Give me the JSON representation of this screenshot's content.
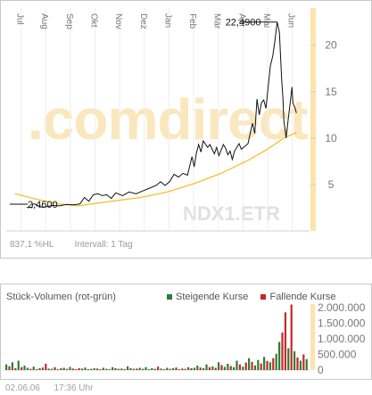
{
  "chart_data": [
    {
      "type": "line",
      "months": [
        "Jul",
        "Aug",
        "Sep",
        "Okt",
        "Nov",
        "Dez",
        "Jan",
        "Feb",
        "Mär",
        "Apr",
        "Mai",
        "Jun"
      ],
      "ylim": [
        0,
        24
      ],
      "yticks": [
        "5",
        "10",
        "15",
        "20"
      ],
      "high_label": "22,4900",
      "low_label": "2,4600",
      "watermark": ".comdirect",
      "ticker": "NDX1.ETR",
      "series": [
        {
          "values": [
            [
              2.7,
              2.55
            ],
            [
              3.0,
              2.5
            ],
            [
              3.4,
              2.55
            ],
            [
              3.8,
              2.5
            ],
            [
              4.0,
              2.9
            ],
            [
              4.5,
              2.9
            ],
            [
              5.0,
              2.75
            ],
            [
              5.5,
              2.6
            ],
            [
              6.2,
              2.55
            ],
            [
              7.0,
              2.6
            ],
            [
              8.5,
              2.75
            ],
            [
              10.0,
              2.7
            ],
            [
              11.5,
              2.85
            ],
            [
              13.0,
              2.8
            ],
            [
              14.5,
              2.9
            ],
            [
              15.5,
              3.6
            ],
            [
              16.5,
              3.2
            ],
            [
              17.5,
              3.9
            ],
            [
              18.5,
              4.0
            ],
            [
              19.5,
              3.8
            ],
            [
              20.5,
              3.9
            ],
            [
              21.5,
              3.5
            ],
            [
              22.5,
              4.1
            ],
            [
              24.0,
              3.8
            ],
            [
              25.5,
              4.2
            ],
            [
              27.0,
              4.0
            ],
            [
              28.5,
              4.3
            ],
            [
              30.0,
              4.6
            ],
            [
              31.5,
              4.9
            ],
            [
              32.5,
              5.3
            ],
            [
              33.5,
              4.9
            ],
            [
              34.5,
              5.3
            ],
            [
              35.5,
              6.1
            ],
            [
              36.5,
              5.8
            ],
            [
              37.5,
              6.2
            ],
            [
              38.5,
              6.0
            ],
            [
              39.5,
              8.0
            ],
            [
              40.0,
              6.9
            ],
            [
              40.5,
              8.4
            ],
            [
              41.0,
              9.3
            ],
            [
              41.5,
              8.5
            ],
            [
              42.0,
              9.7
            ],
            [
              43.0,
              9.0
            ],
            [
              43.5,
              9.3
            ],
            [
              44.5,
              8.3
            ],
            [
              45.0,
              9.0
            ],
            [
              45.5,
              8.1
            ],
            [
              46.5,
              9.3
            ],
            [
              47.0,
              8.9
            ],
            [
              47.5,
              8.2
            ],
            [
              48.0,
              8.6
            ],
            [
              48.5,
              7.7
            ],
            [
              49.0,
              8.6
            ],
            [
              50.0,
              9.4
            ],
            [
              50.5,
              8.8
            ],
            [
              51.5,
              9.2
            ],
            [
              52.0,
              9.4
            ],
            [
              53.0,
              11.6
            ],
            [
              53.5,
              10.5
            ],
            [
              54.0,
              14.2
            ],
            [
              54.5,
              12.5
            ],
            [
              55.0,
              13.8
            ],
            [
              55.5,
              14.1
            ],
            [
              56.0,
              13.2
            ],
            [
              56.5,
              15.5
            ],
            [
              57.0,
              17.8
            ],
            [
              57.5,
              18.8
            ],
            [
              58.0,
              20.5
            ],
            [
              58.5,
              22.49
            ],
            [
              59.0,
              21.4
            ],
            [
              59.5,
              16.4
            ],
            [
              59.8,
              14.2
            ],
            [
              60.0,
              11.9
            ],
            [
              60.5,
              10.0
            ],
            [
              61.0,
              12.2
            ],
            [
              61.5,
              14.2
            ],
            [
              61.8,
              15.5
            ],
            [
              62.0,
              13.8
            ],
            [
              62.5,
              13.2
            ],
            [
              62.8,
              12.7
            ]
          ]
        },
        {
          "values": [
            [
              0.0,
              4.0
            ],
            [
              5.0,
              3.4
            ],
            [
              10.0,
              2.9
            ],
            [
              14.0,
              2.7
            ],
            [
              20.0,
              3.1
            ],
            [
              28.0,
              3.6
            ],
            [
              34.0,
              4.2
            ],
            [
              40.0,
              5.1
            ],
            [
              46.0,
              6.2
            ],
            [
              52.0,
              7.6
            ],
            [
              56.0,
              8.7
            ],
            [
              60.0,
              10.0
            ],
            [
              62.8,
              10.6
            ]
          ]
        }
      ]
    },
    {
      "type": "bar",
      "title": "Stück-Volumen (rot-grün)",
      "legend": [
        {
          "label": "Steigende Kurse",
          "color": "#2e7d32"
        },
        {
          "label": "Fallende Kurse",
          "color": "#c62828"
        }
      ],
      "ylim": [
        0,
        2000000
      ],
      "yticks": [
        "0",
        "500.000",
        "1.000.000",
        "1.500.000",
        "2.000.000"
      ],
      "colors": {
        "up": "#2e7d32",
        "down": "#c62828"
      },
      "volumes": [
        [
          180000,
          1
        ],
        [
          120000,
          0
        ],
        [
          250000,
          1
        ],
        [
          60000,
          0
        ],
        [
          300000,
          1
        ],
        [
          90000,
          0
        ],
        [
          140000,
          1
        ],
        [
          70000,
          1
        ],
        [
          40000,
          0
        ],
        [
          110000,
          1
        ],
        [
          30000,
          1
        ],
        [
          60000,
          0
        ],
        [
          80000,
          1
        ],
        [
          200000,
          0
        ],
        [
          50000,
          1
        ],
        [
          40000,
          1
        ],
        [
          90000,
          0
        ],
        [
          30000,
          1
        ],
        [
          60000,
          1
        ],
        [
          70000,
          0
        ],
        [
          40000,
          1
        ],
        [
          100000,
          1
        ],
        [
          50000,
          0
        ],
        [
          30000,
          1
        ],
        [
          60000,
          0
        ],
        [
          50000,
          1
        ],
        [
          80000,
          1
        ],
        [
          30000,
          0
        ],
        [
          40000,
          1
        ],
        [
          60000,
          1
        ],
        [
          50000,
          0
        ],
        [
          30000,
          1
        ],
        [
          70000,
          1
        ],
        [
          40000,
          0
        ],
        [
          30000,
          1
        ],
        [
          90000,
          1
        ],
        [
          60000,
          0
        ],
        [
          40000,
          1
        ],
        [
          50000,
          1
        ],
        [
          30000,
          0
        ],
        [
          120000,
          1
        ],
        [
          60000,
          1
        ],
        [
          40000,
          0
        ],
        [
          50000,
          1
        ],
        [
          70000,
          0
        ],
        [
          40000,
          1
        ],
        [
          90000,
          1
        ],
        [
          30000,
          0
        ],
        [
          60000,
          1
        ],
        [
          40000,
          1
        ],
        [
          110000,
          0
        ],
        [
          50000,
          1
        ],
        [
          30000,
          1
        ],
        [
          70000,
          0
        ],
        [
          40000,
          1
        ],
        [
          60000,
          1
        ],
        [
          80000,
          0
        ],
        [
          30000,
          1
        ],
        [
          50000,
          0
        ],
        [
          40000,
          1
        ],
        [
          90000,
          1
        ],
        [
          60000,
          0
        ],
        [
          70000,
          1
        ],
        [
          140000,
          1
        ],
        [
          80000,
          0
        ],
        [
          60000,
          1
        ],
        [
          180000,
          1
        ],
        [
          90000,
          0
        ],
        [
          120000,
          1
        ],
        [
          70000,
          0
        ],
        [
          250000,
          1
        ],
        [
          160000,
          0
        ],
        [
          100000,
          1
        ],
        [
          200000,
          1
        ],
        [
          130000,
          0
        ],
        [
          90000,
          1
        ],
        [
          300000,
          1
        ],
        [
          180000,
          0
        ],
        [
          110000,
          1
        ],
        [
          240000,
          0
        ],
        [
          380000,
          1
        ],
        [
          260000,
          0
        ],
        [
          150000,
          1
        ],
        [
          320000,
          1
        ],
        [
          210000,
          0
        ],
        [
          420000,
          1
        ],
        [
          290000,
          0
        ],
        [
          250000,
          1
        ],
        [
          380000,
          0
        ],
        [
          520000,
          1
        ],
        [
          900000,
          1
        ],
        [
          1200000,
          0
        ],
        [
          1850000,
          0
        ],
        [
          700000,
          1
        ],
        [
          2100000,
          0
        ],
        [
          600000,
          1
        ],
        [
          400000,
          0
        ],
        [
          300000,
          1
        ],
        [
          500000,
          0
        ],
        [
          350000,
          1
        ]
      ]
    }
  ],
  "info": {
    "change_label": "837,1 %HL",
    "interval_label": "Intervall: 1 Tag"
  },
  "footer": {
    "date": "02.06.06",
    "time": "17:36 Uhr"
  }
}
